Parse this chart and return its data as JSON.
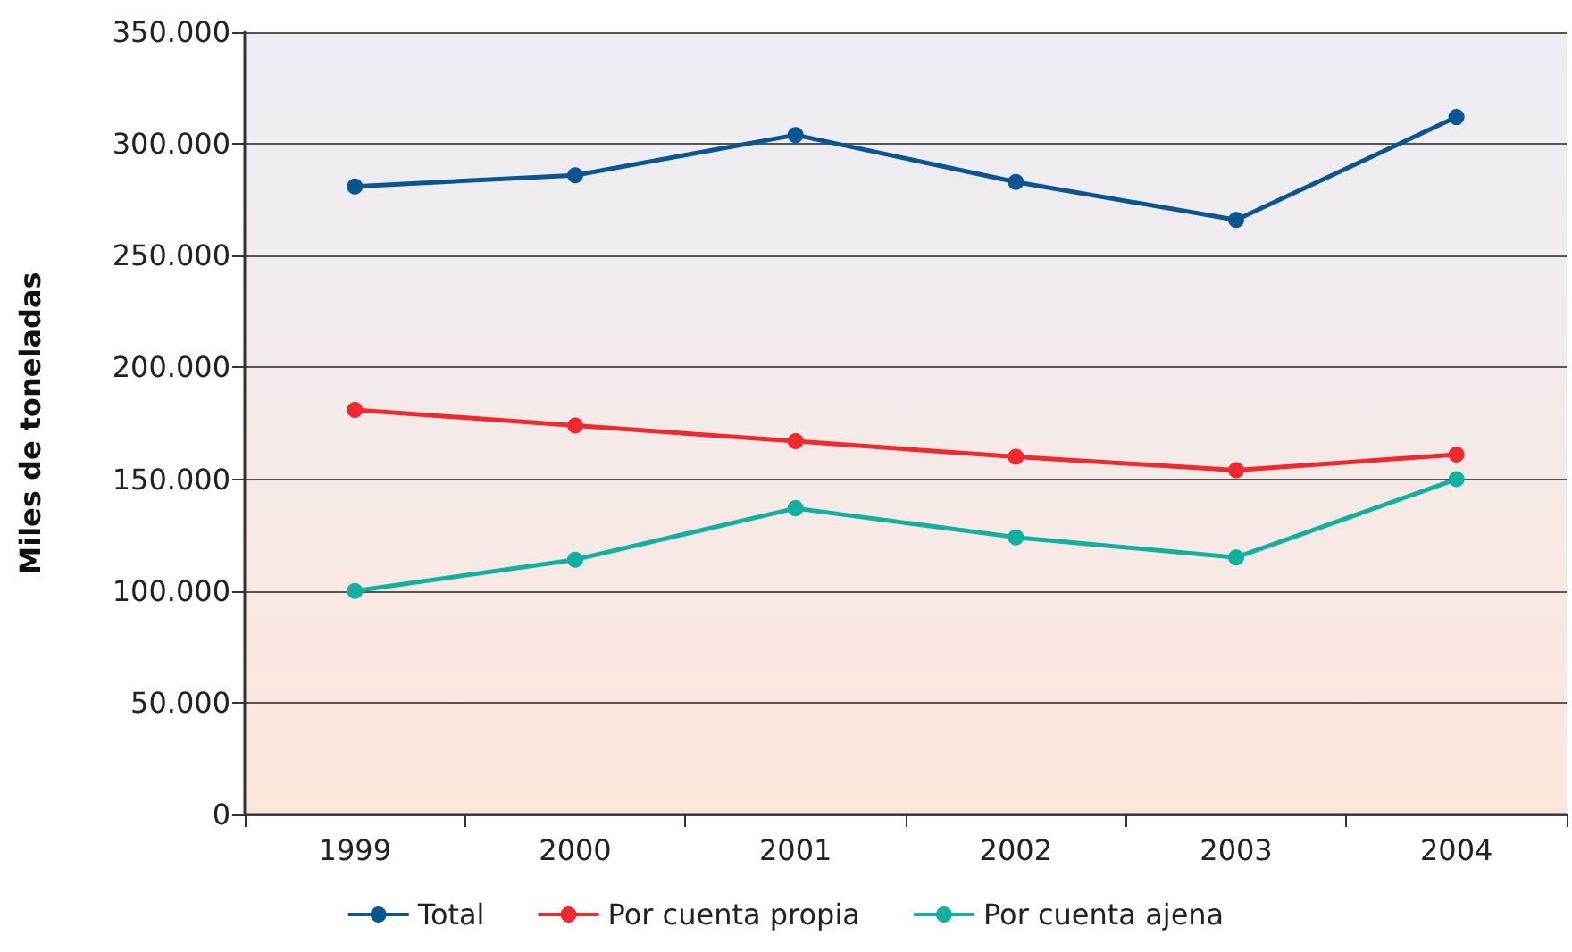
{
  "chart_data": {
    "type": "line",
    "ylabel": "Miles de toneladas",
    "categories": [
      "1999",
      "2000",
      "2001",
      "2002",
      "2003",
      "2004"
    ],
    "series": [
      {
        "name": "Total",
        "color": "#0b5590",
        "values": [
          281000,
          286000,
          304000,
          283000,
          266000,
          312000
        ]
      },
      {
        "name": "Por cuenta propia",
        "color": "#ee2a2e",
        "values": [
          181000,
          174000,
          167000,
          160000,
          154000,
          161000
        ]
      },
      {
        "name": "Por cuenta ajena",
        "color": "#13b0a0",
        "values": [
          100000,
          114000,
          137000,
          124000,
          115000,
          150000
        ]
      }
    ],
    "ylim": [
      0,
      350000
    ],
    "yticks": [
      {
        "value": 0,
        "label": "0"
      },
      {
        "value": 50000,
        "label": "50.000"
      },
      {
        "value": 100000,
        "label": "100.000"
      },
      {
        "value": 150000,
        "label": "150.000"
      },
      {
        "value": 200000,
        "label": "200.000"
      },
      {
        "value": 250000,
        "label": "250.000"
      },
      {
        "value": 300000,
        "label": "300.000"
      },
      {
        "value": 350000,
        "label": "350.000"
      }
    ],
    "grid": "y",
    "legend": "bottom",
    "marker": "circle",
    "line_style": "solid"
  }
}
